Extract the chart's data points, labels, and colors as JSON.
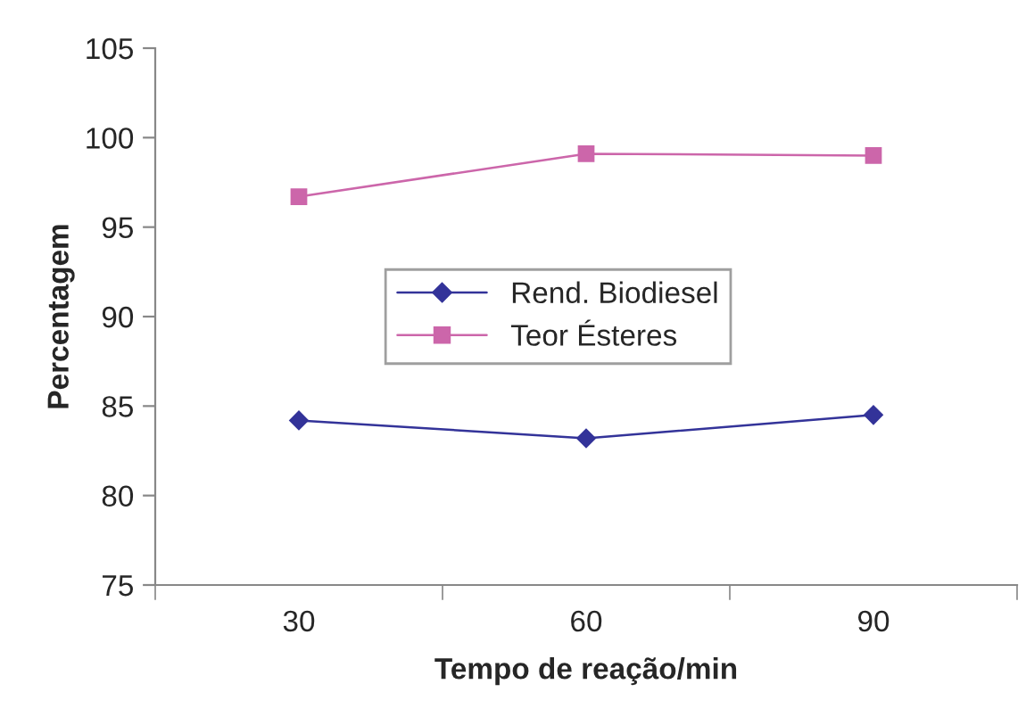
{
  "chart_data": {
    "type": "line",
    "xlabel": "Tempo de reação/min",
    "ylabel": "Percentagem",
    "categories": [
      "30",
      "60",
      "90"
    ],
    "series": [
      {
        "name": "Rend. Biodiesel",
        "color": "#333399",
        "values": [
          84.2,
          83.2,
          84.5
        ],
        "marker": "diamond"
      },
      {
        "name": "Teor Ésteres",
        "color": "#cc66aa",
        "values": [
          96.7,
          99.1,
          99.0
        ],
        "marker": "square"
      }
    ],
    "ylim": [
      75,
      105
    ],
    "yticks": [
      75,
      80,
      85,
      90,
      95,
      100,
      105
    ],
    "grid": false,
    "legend": "center left",
    "line_style": "solid"
  }
}
